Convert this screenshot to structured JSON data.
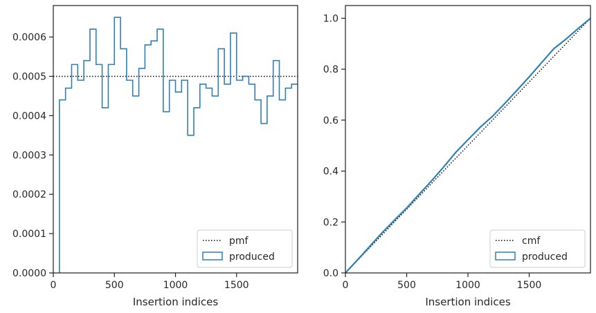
{
  "colors": {
    "series": "#2e7fb5",
    "reference": "#000000",
    "axis": "#262626"
  },
  "chart_data": [
    {
      "type": "step",
      "xlabel": "Insertion indices",
      "ylabel": "",
      "xlim": [
        0,
        2000
      ],
      "ylim": [
        0,
        0.00068
      ],
      "xticks": [
        0,
        500,
        1000,
        1500
      ],
      "xtick_labels": [
        "0",
        "500",
        "1000",
        "1500"
      ],
      "yticks": [
        0,
        0.0001,
        0.0002,
        0.0003,
        0.0004,
        0.0005,
        0.0006
      ],
      "ytick_labels": [
        "0.0000",
        "0.0001",
        "0.0002",
        "0.0003",
        "0.0004",
        "0.0005",
        "0.0006"
      ],
      "legend": {
        "position": "lower-right",
        "entries": [
          "pmf",
          "produced"
        ]
      },
      "reference": {
        "name": "pmf",
        "value": 0.0005
      },
      "series": [
        {
          "name": "produced",
          "bin_edges": [
            50,
            100,
            150,
            200,
            250,
            300,
            350,
            400,
            450,
            500,
            550,
            600,
            650,
            700,
            750,
            800,
            850,
            900,
            950,
            1000,
            1050,
            1100,
            1150,
            1200,
            1250,
            1300,
            1350,
            1400,
            1450,
            1500,
            1550,
            1600,
            1650,
            1700,
            1750,
            1800,
            1850,
            1900,
            1950,
            2000
          ],
          "values": [
            0.00044,
            0.00047,
            0.00053,
            0.00049,
            0.00054,
            0.00062,
            0.00053,
            0.00042,
            0.00053,
            0.00065,
            0.00057,
            0.00049,
            0.00045,
            0.00052,
            0.00058,
            0.00059,
            0.00062,
            0.00041,
            0.00049,
            0.00046,
            0.00049,
            0.00035,
            0.00042,
            0.00048,
            0.00047,
            0.00045,
            0.00057,
            0.00048,
            0.00061,
            0.00049,
            0.0005,
            0.00048,
            0.00044,
            0.00038,
            0.00045,
            0.00054,
            0.00044,
            0.00047,
            0.00048
          ]
        }
      ]
    },
    {
      "type": "line",
      "xlabel": "Insertion indices",
      "ylabel": "",
      "xlim": [
        0,
        2000
      ],
      "ylim": [
        0,
        1.05
      ],
      "xticks": [
        0,
        500,
        1000,
        1500
      ],
      "xtick_labels": [
        "0",
        "500",
        "1000",
        "1500"
      ],
      "yticks": [
        0,
        0.2,
        0.4,
        0.6,
        0.8,
        1.0
      ],
      "ytick_labels": [
        "0.0",
        "0.2",
        "0.4",
        "0.6",
        "0.8",
        "1.0"
      ],
      "legend": {
        "position": "lower-right",
        "entries": [
          "cmf",
          "produced"
        ]
      },
      "reference": {
        "name": "cmf",
        "x": [
          0,
          2000
        ],
        "y": [
          0,
          1.0
        ]
      },
      "series": [
        {
          "name": "produced",
          "x": [
            0,
            100,
            200,
            300,
            400,
            500,
            600,
            700,
            800,
            900,
            1000,
            1100,
            1200,
            1300,
            1400,
            1500,
            1600,
            1700,
            1800,
            1900,
            2000
          ],
          "y": [
            0,
            0.052,
            0.105,
            0.158,
            0.207,
            0.255,
            0.308,
            0.36,
            0.415,
            0.473,
            0.523,
            0.572,
            0.615,
            0.665,
            0.717,
            0.77,
            0.825,
            0.88,
            0.918,
            0.96,
            1.0
          ]
        }
      ]
    }
  ]
}
